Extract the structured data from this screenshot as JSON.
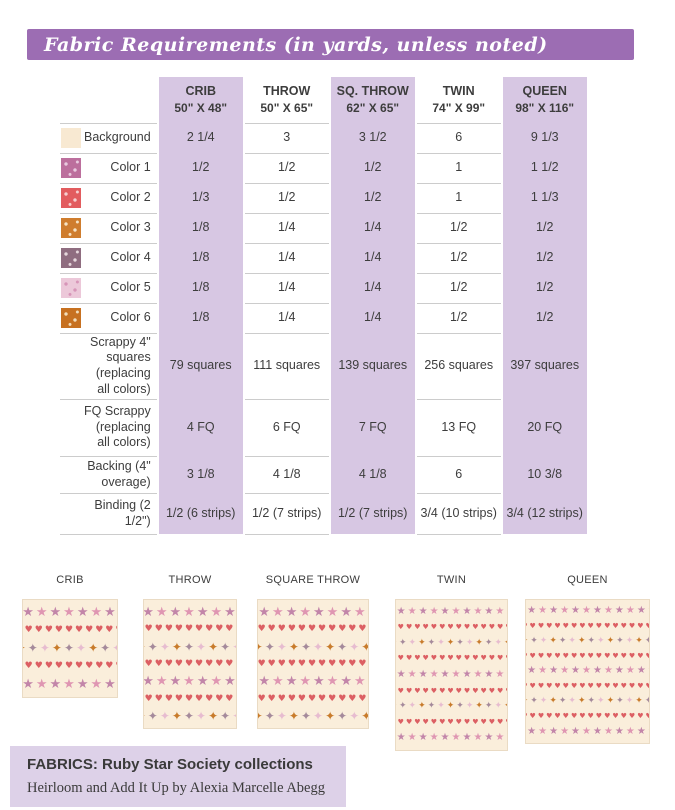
{
  "banner": {
    "title": "Fabric Requirements (in yards, unless noted)",
    "background": "#9c6db3",
    "text_color": "#ffffff"
  },
  "table": {
    "shaded_color": "#d7c7e3",
    "columns": [
      {
        "label": "CRIB",
        "size": "50\" X 48\"",
        "shaded": true
      },
      {
        "label": "THROW",
        "size": "50\" X 65\"",
        "shaded": false
      },
      {
        "label": "SQ. THROW",
        "size": "62\" X 65\"",
        "shaded": true
      },
      {
        "label": "TWIN",
        "size": "74\" X 99\"",
        "shaded": false
      },
      {
        "label": "QUEEN",
        "size": "98\" X 116\"",
        "shaded": true
      }
    ],
    "rows": [
      {
        "label": "Background",
        "swatch": {
          "name": "background-fabric-swatch",
          "color": "#f8e9d2",
          "speckle": ""
        },
        "values": [
          "2 1/4",
          "3",
          "3 1/2",
          "6",
          "9 1/3"
        ]
      },
      {
        "label": "Color 1",
        "swatch": {
          "name": "color-1-fabric-swatch",
          "color": "#bc6f9d",
          "speckle": "#e9cadf"
        },
        "values": [
          "1/2",
          "1/2",
          "1/2",
          "1",
          "1 1/2"
        ]
      },
      {
        "label": "Color 2",
        "swatch": {
          "name": "color-2-fabric-swatch",
          "color": "#e25c5f",
          "speckle": "#f6cfcf"
        },
        "values": [
          "1/3",
          "1/2",
          "1/2",
          "1",
          "1 1/3"
        ]
      },
      {
        "label": "Color 3",
        "swatch": {
          "name": "color-3-fabric-swatch",
          "color": "#cf7d2e",
          "speckle": "#f6e3c4"
        },
        "values": [
          "1/8",
          "1/4",
          "1/4",
          "1/2",
          "1/2"
        ]
      },
      {
        "label": "Color 4",
        "swatch": {
          "name": "color-4-fabric-swatch",
          "color": "#8f6d80",
          "speckle": "#e6d7dc"
        },
        "values": [
          "1/8",
          "1/4",
          "1/4",
          "1/2",
          "1/2"
        ]
      },
      {
        "label": "Color 5",
        "swatch": {
          "name": "color-5-fabric-swatch",
          "color": "#ecc8d9",
          "speckle": "#d795b8"
        },
        "values": [
          "1/8",
          "1/4",
          "1/4",
          "1/2",
          "1/2"
        ]
      },
      {
        "label": "Color 6",
        "swatch": {
          "name": "color-6-fabric-swatch",
          "color": "#c77121",
          "speckle": "#f2ddba"
        },
        "values": [
          "1/8",
          "1/4",
          "1/4",
          "1/2",
          "1/2"
        ]
      },
      {
        "label": "Scrappy 4\" squares (replacing all colors)",
        "values": [
          "79 squares",
          "111 squares",
          "139 squares",
          "256 squares",
          "397 squares"
        ]
      },
      {
        "label": "FQ Scrappy (replacing all colors)",
        "values": [
          "4 FQ",
          "6 FQ",
          "7 FQ",
          "13 FQ",
          "20 FQ"
        ]
      },
      {
        "label": "Backing (4\" overage)",
        "values": [
          "3 1/8",
          "4 1/8",
          "4 1/8",
          "6",
          "10 3/8"
        ]
      },
      {
        "label": "Binding (2 1/2\")",
        "values": [
          "1/2 (6 strips)",
          "1/2 (7 strips)",
          "1/2 (7 strips)",
          "3/4 (10 strips)",
          "3/4 (12 strips)"
        ]
      }
    ]
  },
  "quilt_previews": [
    {
      "key": "crib",
      "label": "CRIB",
      "pattern_rows": [
        "stars",
        "hearts",
        "pinwheels",
        "hearts",
        "stars"
      ]
    },
    {
      "key": "throw",
      "label": "THROW",
      "pattern_rows": [
        "stars",
        "hearts",
        "pinwheels",
        "hearts",
        "stars",
        "hearts",
        "pinwheels"
      ]
    },
    {
      "key": "square-throw",
      "label": "SQUARE THROW",
      "pattern_rows": [
        "stars",
        "hearts",
        "pinwheels",
        "hearts",
        "stars",
        "hearts",
        "pinwheels"
      ]
    },
    {
      "key": "twin",
      "label": "TWIN",
      "pattern_rows": [
        "stars",
        "hearts",
        "pinwheels",
        "hearts",
        "stars",
        "hearts",
        "pinwheels",
        "hearts",
        "stars"
      ]
    },
    {
      "key": "queen",
      "label": "QUEEN",
      "pattern_rows": [
        "stars",
        "hearts",
        "pinwheels",
        "hearts",
        "stars",
        "hearts",
        "pinwheels",
        "hearts",
        "stars"
      ]
    }
  ],
  "quilt_palette": {
    "background": "#faeedb",
    "star_a": "#df96b2",
    "star_b": "#c285a9",
    "heart": "#dc5f63",
    "pinwheel_a": "#c87b2b",
    "pinwheel_b": "#a58a9b",
    "pinwheel_c": "#e7bcd0"
  },
  "fabrics_note": {
    "line1": "FABRICS: Ruby Star Society collections",
    "line2": "Heirloom and Add It Up by Alexia Marcelle Abegg",
    "background": "#ddd1e8"
  }
}
